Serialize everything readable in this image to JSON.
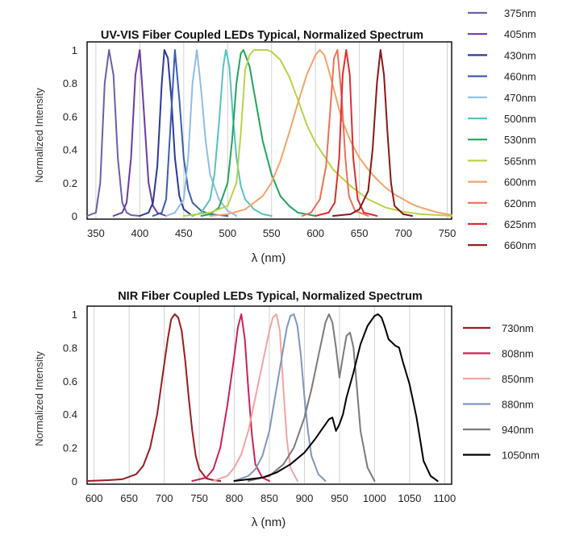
{
  "chart_data": [
    {
      "type": "line",
      "title": "UV-VIS Fiber Coupled LEDs Typical, Normalized Spectrum",
      "xlabel": "λ (nm)",
      "ylabel": "Normalized Intensity",
      "xlim": [
        340,
        755
      ],
      "ylim": [
        0,
        1
      ],
      "xticks": [
        350,
        400,
        450,
        500,
        550,
        600,
        650,
        700,
        750
      ],
      "yticks": [
        0,
        0.2,
        0.4,
        0.6,
        0.8,
        1
      ],
      "grid": "vertical",
      "legend_position": "right",
      "series": [
        {
          "name": "375nm",
          "color": "#6b5fa8",
          "x": [
            340,
            350,
            355,
            360,
            365,
            370,
            375,
            380,
            385,
            390,
            400
          ],
          "y": [
            0,
            0.02,
            0.2,
            0.8,
            1,
            0.85,
            0.35,
            0.08,
            0.02,
            0.005,
            0
          ]
        },
        {
          "name": "405nm",
          "color": "#6a3ba4",
          "x": [
            370,
            380,
            385,
            390,
            395,
            400,
            405,
            410,
            415,
            420,
            430
          ],
          "y": [
            0,
            0.02,
            0.08,
            0.35,
            0.85,
            1,
            0.6,
            0.2,
            0.06,
            0.02,
            0
          ]
        },
        {
          "name": "430nm",
          "color": "#2c3893",
          "x": [
            400,
            410,
            415,
            420,
            425,
            428,
            432,
            436,
            440,
            445,
            450,
            460
          ],
          "y": [
            0,
            0.02,
            0.08,
            0.3,
            0.8,
            1,
            0.95,
            0.7,
            0.35,
            0.12,
            0.04,
            0
          ]
        },
        {
          "name": "460nm",
          "color": "#3a5db0",
          "x": [
            415,
            425,
            430,
            435,
            440,
            445,
            450,
            455,
            460,
            470,
            480,
            500
          ],
          "y": [
            0,
            0.02,
            0.1,
            0.55,
            1,
            0.7,
            0.35,
            0.16,
            0.08,
            0.03,
            0.01,
            0
          ]
        },
        {
          "name": "470nm",
          "color": "#8fbde6",
          "x": [
            430,
            440,
            450,
            455,
            460,
            465,
            470,
            475,
            480,
            490,
            500,
            510
          ],
          "y": [
            0,
            0.02,
            0.1,
            0.35,
            0.8,
            1,
            0.75,
            0.45,
            0.25,
            0.1,
            0.03,
            0
          ]
        },
        {
          "name": "500nm",
          "color": "#54c3c1",
          "x": [
            460,
            470,
            480,
            485,
            490,
            495,
            498,
            502,
            506,
            510,
            515,
            520,
            530,
            540,
            550
          ],
          "y": [
            0,
            0.02,
            0.1,
            0.25,
            0.55,
            0.9,
            1,
            0.9,
            0.6,
            0.35,
            0.18,
            0.1,
            0.04,
            0.01,
            0
          ]
        },
        {
          "name": "530nm",
          "color": "#23a55a",
          "x": [
            470,
            480,
            490,
            500,
            505,
            510,
            515,
            518,
            525,
            530,
            535,
            540,
            550,
            560,
            570,
            580,
            600
          ],
          "y": [
            0,
            0.01,
            0.05,
            0.2,
            0.45,
            0.8,
            0.98,
            1,
            0.9,
            0.75,
            0.6,
            0.45,
            0.25,
            0.12,
            0.06,
            0.02,
            0
          ]
        },
        {
          "name": "565nm",
          "color": "#b9d348",
          "x": [
            450,
            480,
            500,
            510,
            515,
            520,
            525,
            530,
            535,
            540,
            545,
            550,
            560,
            570,
            580,
            590,
            600,
            620,
            640,
            660,
            680,
            700,
            720,
            740,
            755
          ],
          "y": [
            0,
            0.02,
            0.06,
            0.2,
            0.5,
            0.88,
            0.97,
            1,
            1,
            1,
            1,
            0.99,
            0.94,
            0.84,
            0.7,
            0.55,
            0.44,
            0.28,
            0.18,
            0.1,
            0.05,
            0.025,
            0.01,
            0.005,
            0
          ]
        },
        {
          "name": "600nm",
          "color": "#f4a26b",
          "x": [
            480,
            500,
            520,
            540,
            550,
            560,
            570,
            580,
            590,
            600,
            605,
            610,
            615,
            620,
            625,
            630,
            640,
            650,
            660,
            670,
            680,
            690,
            700,
            710,
            720,
            730,
            740,
            750,
            755
          ],
          "y": [
            0,
            0.01,
            0.04,
            0.12,
            0.2,
            0.33,
            0.5,
            0.68,
            0.85,
            0.97,
            1,
            0.97,
            0.88,
            0.78,
            0.68,
            0.58,
            0.45,
            0.35,
            0.28,
            0.22,
            0.17,
            0.13,
            0.1,
            0.07,
            0.05,
            0.035,
            0.02,
            0.01,
            0.005
          ]
        },
        {
          "name": "620nm",
          "color": "#ee7055",
          "x": [
            585,
            595,
            605,
            612,
            617,
            621,
            625,
            630,
            634,
            638,
            645,
            660
          ],
          "y": [
            0,
            0.02,
            0.1,
            0.3,
            0.65,
            0.95,
            1,
            0.7,
            0.35,
            0.12,
            0.03,
            0
          ]
        },
        {
          "name": "625nm",
          "color": "#e02d2d",
          "x": [
            600,
            615,
            622,
            627,
            631,
            635,
            639,
            643,
            648,
            655,
            670
          ],
          "y": [
            0,
            0.02,
            0.08,
            0.35,
            0.85,
            1,
            0.85,
            0.35,
            0.1,
            0.02,
            0
          ]
        },
        {
          "name": "660nm",
          "color": "#8b1616",
          "x": [
            620,
            640,
            650,
            660,
            665,
            670,
            674,
            678,
            682,
            686,
            690,
            700,
            710
          ],
          "y": [
            0,
            0.01,
            0.04,
            0.15,
            0.4,
            0.8,
            1,
            0.85,
            0.5,
            0.2,
            0.06,
            0.01,
            0
          ]
        }
      ]
    },
    {
      "type": "line",
      "title": "NIR Fiber Coupled LEDs Typical, Normalized Spectrum",
      "xlabel": "λ (nm)",
      "ylabel": "Normalized Intensity",
      "xlim": [
        590,
        1110
      ],
      "ylim": [
        0,
        1
      ],
      "xticks": [
        600,
        650,
        700,
        750,
        800,
        850,
        900,
        950,
        1000,
        1050,
        1100
      ],
      "yticks": [
        0,
        0.2,
        0.4,
        0.6,
        0.8,
        1
      ],
      "grid": "vertical",
      "legend_position": "right",
      "series": [
        {
          "name": "730nm",
          "color": "#9b1b20",
          "x": [
            590,
            620,
            640,
            660,
            670,
            680,
            690,
            700,
            705,
            710,
            715,
            720,
            725,
            730,
            735,
            740,
            745,
            750,
            760,
            770,
            780
          ],
          "y": [
            0,
            0.005,
            0.01,
            0.04,
            0.09,
            0.2,
            0.4,
            0.7,
            0.85,
            0.97,
            1,
            0.98,
            0.9,
            0.72,
            0.5,
            0.3,
            0.15,
            0.07,
            0.015,
            0.005,
            0
          ]
        },
        {
          "name": "808nm",
          "color": "#cc2255",
          "x": [
            740,
            760,
            770,
            780,
            790,
            800,
            805,
            810,
            815,
            820,
            825,
            830,
            840,
            850
          ],
          "y": [
            0,
            0.02,
            0.07,
            0.2,
            0.45,
            0.75,
            0.92,
            1,
            0.85,
            0.55,
            0.28,
            0.1,
            0.02,
            0
          ]
        },
        {
          "name": "850nm",
          "color": "#f4a3a3",
          "x": [
            770,
            790,
            800,
            810,
            820,
            830,
            840,
            850,
            855,
            860,
            865,
            870,
            875,
            880,
            890
          ],
          "y": [
            0,
            0.03,
            0.08,
            0.16,
            0.3,
            0.5,
            0.7,
            0.9,
            0.98,
            1,
            0.9,
            0.55,
            0.25,
            0.08,
            0
          ]
        },
        {
          "name": "880nm",
          "color": "#7f96bd",
          "x": [
            800,
            820,
            830,
            840,
            850,
            860,
            870,
            875,
            880,
            885,
            890,
            895,
            900,
            905,
            910,
            920,
            930
          ],
          "y": [
            0,
            0.03,
            0.07,
            0.15,
            0.3,
            0.55,
            0.8,
            0.92,
            0.99,
            1,
            0.93,
            0.75,
            0.5,
            0.3,
            0.15,
            0.04,
            0
          ]
        },
        {
          "name": "940nm",
          "color": "#7a7a7a",
          "x": [
            820,
            850,
            870,
            885,
            900,
            910,
            920,
            925,
            930,
            935,
            940,
            945,
            950,
            955,
            960,
            965,
            970,
            975,
            980,
            990,
            1000
          ],
          "y": [
            0,
            0.03,
            0.1,
            0.2,
            0.38,
            0.55,
            0.75,
            0.85,
            0.95,
            1,
            0.95,
            0.8,
            0.62,
            0.75,
            0.87,
            0.89,
            0.8,
            0.55,
            0.3,
            0.08,
            0
          ]
        },
        {
          "name": "1050nm",
          "color": "#000000",
          "x": [
            800,
            840,
            860,
            880,
            900,
            915,
            925,
            935,
            940,
            945,
            950,
            955,
            960,
            970,
            980,
            990,
            1000,
            1005,
            1010,
            1015,
            1020,
            1030,
            1035,
            1040,
            1050,
            1055,
            1060,
            1065,
            1070,
            1080,
            1090
          ],
          "y": [
            0,
            0.02,
            0.05,
            0.1,
            0.17,
            0.25,
            0.31,
            0.37,
            0.38,
            0.3,
            0.34,
            0.4,
            0.5,
            0.65,
            0.82,
            0.93,
            0.99,
            1,
            0.98,
            0.92,
            0.85,
            0.81,
            0.8,
            0.72,
            0.58,
            0.48,
            0.38,
            0.25,
            0.12,
            0.03,
            0
          ]
        }
      ]
    }
  ]
}
